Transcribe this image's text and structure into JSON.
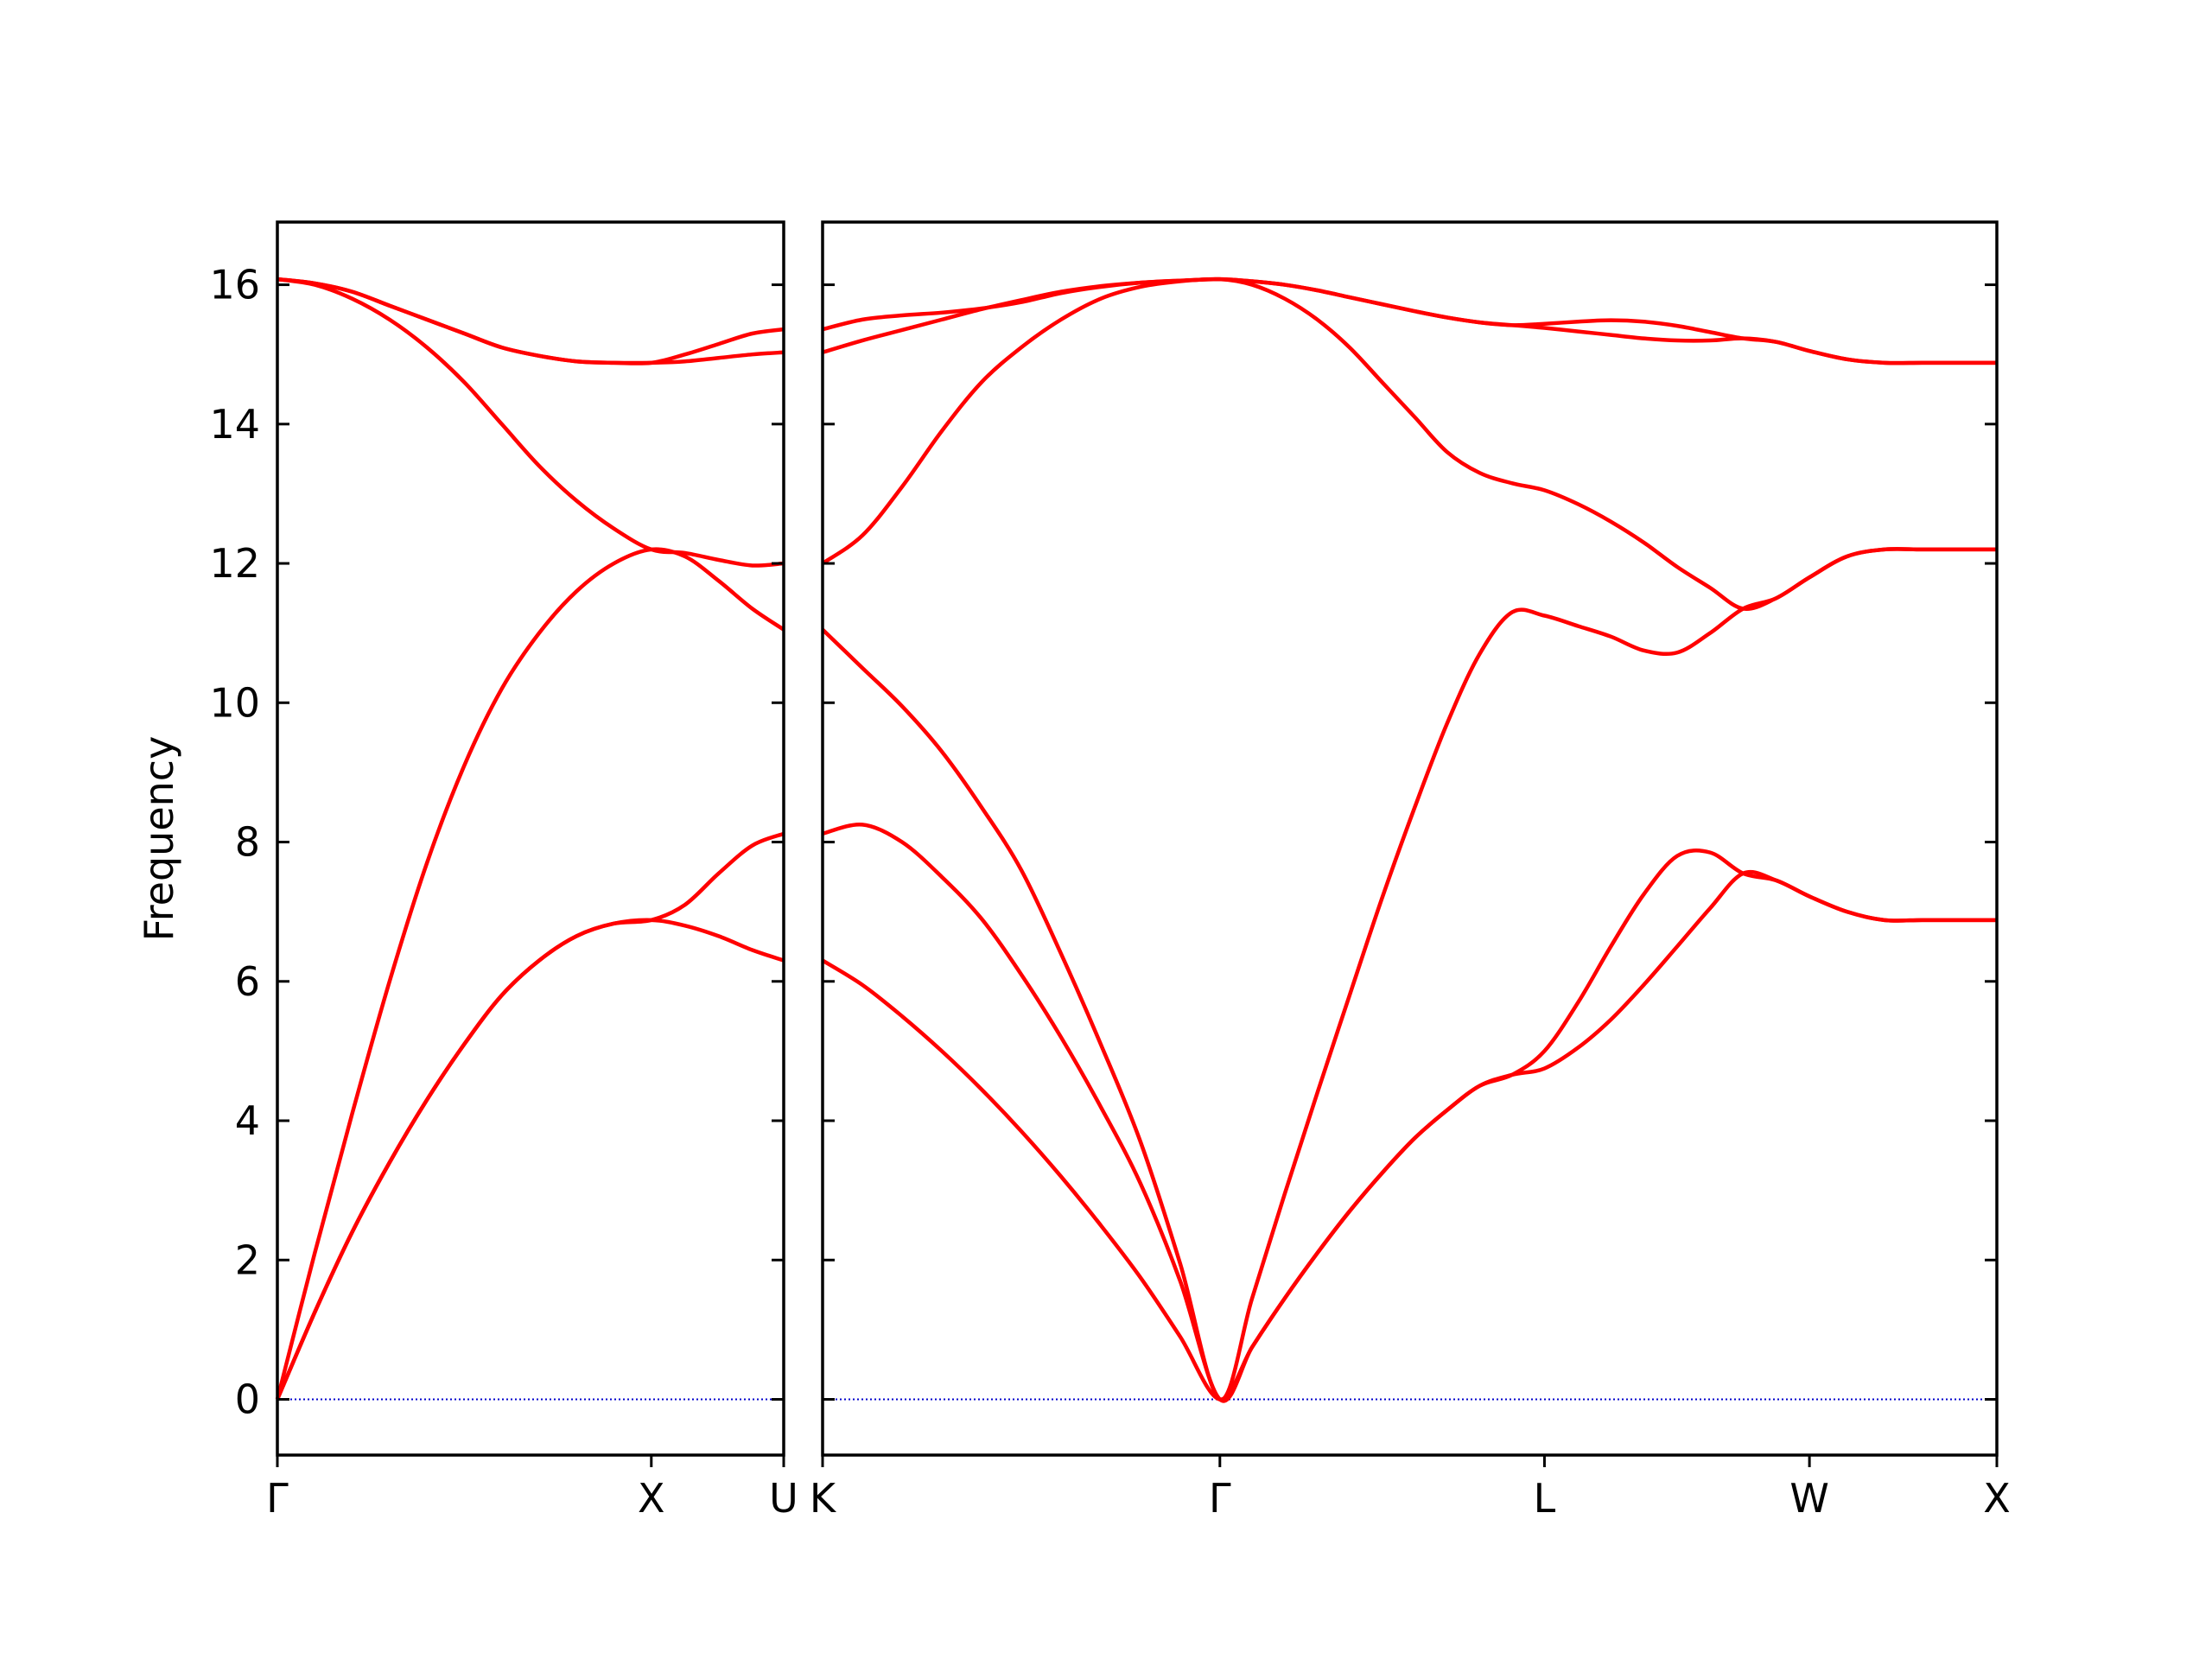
{
  "chart_data": [
    {
      "type": "line",
      "ylabel": "Frequency",
      "xlim": [
        0,
        1.354
      ],
      "ylim": [
        -0.8,
        16.9
      ],
      "xticks": [
        {
          "value": 0,
          "label": "Γ"
        },
        {
          "value": 1,
          "label": "X"
        },
        {
          "value": 1.354,
          "label": "U"
        }
      ],
      "yticks": [
        0,
        2,
        4,
        6,
        8,
        10,
        12,
        14,
        16
      ],
      "show_ytick_labels": true,
      "zero_line": true,
      "zero_line_color": "#0000cc",
      "x": [
        0,
        0.1,
        0.2,
        0.3,
        0.4,
        0.5,
        0.6,
        0.7,
        0.8,
        0.9,
        1.0,
        1.09,
        1.18,
        1.27,
        1.354
      ],
      "series": [
        {
          "color": "#ff0000",
          "values": [
            0,
            1.25,
            2.4,
            3.4,
            4.3,
            5.1,
            5.8,
            6.3,
            6.65,
            6.83,
            6.88,
            6.8,
            6.65,
            6.45,
            6.3
          ]
        },
        {
          "color": "#ff0000",
          "values": [
            0,
            1.25,
            2.4,
            3.4,
            4.3,
            5.1,
            5.8,
            6.3,
            6.65,
            6.83,
            6.88,
            7.1,
            7.55,
            7.95,
            8.12
          ]
        },
        {
          "color": "#ff0000",
          "values": [
            0,
            2.1,
            4.1,
            6.0,
            7.7,
            9.1,
            10.2,
            11.0,
            11.6,
            12.0,
            12.2,
            12.1,
            11.75,
            11.35,
            11.05
          ]
        },
        {
          "color": "#ff0000",
          "values": [
            16.08,
            16.0,
            15.8,
            15.5,
            15.1,
            14.6,
            14.0,
            13.4,
            12.9,
            12.5,
            12.2,
            12.15,
            12.05,
            11.97,
            12.0
          ]
        },
        {
          "color": "#ff0000",
          "values": [
            16.08,
            16.02,
            15.9,
            15.7,
            15.5,
            15.3,
            15.1,
            14.98,
            14.9,
            14.88,
            14.88,
            14.9,
            14.95,
            15.0,
            15.03
          ]
        },
        {
          "color": "#ff0000",
          "values": [
            16.08,
            16.02,
            15.9,
            15.7,
            15.5,
            15.3,
            15.1,
            14.98,
            14.9,
            14.88,
            14.88,
            15.0,
            15.15,
            15.3,
            15.36
          ]
        }
      ]
    },
    {
      "type": "line",
      "xlim": [
        1.354,
        4.487
      ],
      "ylim": [
        -0.8,
        16.9
      ],
      "xticks": [
        {
          "value": 1.354,
          "label": "K"
        },
        {
          "value": 2.414,
          "label": "Γ"
        },
        {
          "value": 3.28,
          "label": "L"
        },
        {
          "value": 3.987,
          "label": "W"
        },
        {
          "value": 4.487,
          "label": "X"
        }
      ],
      "yticks": [
        0,
        2,
        4,
        6,
        8,
        10,
        12,
        14,
        16
      ],
      "show_ytick_labels": false,
      "zero_line": true,
      "zero_line_color": "#0000cc",
      "x": [
        1.354,
        1.46,
        1.566,
        1.672,
        1.778,
        1.884,
        1.99,
        2.096,
        2.202,
        2.308,
        2.414,
        2.5,
        2.587,
        2.674,
        2.76,
        2.847,
        2.934,
        3.02,
        3.107,
        3.194,
        3.28,
        3.37,
        3.457,
        3.545,
        3.634,
        3.722,
        3.81,
        3.898,
        3.987,
        4.087,
        4.187,
        4.287,
        4.387,
        4.487
      ],
      "series": [
        {
          "color": "#ff0000",
          "values": [
            6.3,
            5.95,
            5.5,
            5.0,
            4.45,
            3.85,
            3.2,
            2.5,
            1.75,
            0.9,
            0,
            0.75,
            1.45,
            2.1,
            2.7,
            3.25,
            3.75,
            4.15,
            4.5,
            4.66,
            4.75,
            5.05,
            5.45,
            5.95,
            6.5,
            7.05,
            7.55,
            7.45,
            7.22,
            7.0,
            6.88,
            6.88,
            6.88,
            6.88
          ]
        },
        {
          "color": "#ff0000",
          "values": [
            8.12,
            8.25,
            8.0,
            7.5,
            6.9,
            6.1,
            5.2,
            4.2,
            3.1,
            1.7,
            0,
            0.75,
            1.45,
            2.1,
            2.7,
            3.25,
            3.75,
            4.15,
            4.5,
            4.66,
            5.0,
            5.7,
            6.5,
            7.25,
            7.8,
            7.85,
            7.55,
            7.45,
            7.22,
            7.0,
            6.88,
            6.88,
            6.88,
            6.88
          ]
        },
        {
          "color": "#ff0000",
          "values": [
            11.05,
            10.5,
            9.95,
            9.3,
            8.5,
            7.6,
            6.4,
            5.1,
            3.7,
            1.95,
            0,
            1.45,
            2.95,
            4.4,
            5.8,
            7.2,
            8.5,
            9.7,
            10.7,
            11.3,
            11.25,
            11.1,
            10.95,
            10.75,
            10.72,
            11.0,
            11.35,
            11.5,
            11.8,
            12.1,
            12.2,
            12.2,
            12.2,
            12.2
          ]
        },
        {
          "color": "#ff0000",
          "values": [
            12.0,
            12.4,
            13.1,
            13.9,
            14.6,
            15.1,
            15.5,
            15.8,
            15.97,
            16.05,
            16.08,
            16.0,
            15.8,
            15.5,
            15.1,
            14.6,
            14.1,
            13.6,
            13.3,
            13.15,
            13.05,
            12.85,
            12.6,
            12.3,
            11.95,
            11.65,
            11.35,
            11.5,
            11.8,
            12.1,
            12.2,
            12.2,
            12.2,
            12.2
          ]
        },
        {
          "color": "#ff0000",
          "values": [
            15.03,
            15.2,
            15.35,
            15.5,
            15.65,
            15.78,
            15.9,
            15.98,
            16.03,
            16.06,
            16.08,
            16.05,
            16.0,
            15.92,
            15.82,
            15.72,
            15.62,
            15.53,
            15.46,
            15.42,
            15.38,
            15.33,
            15.28,
            15.23,
            15.2,
            15.2,
            15.23,
            15.18,
            15.05,
            14.93,
            14.88,
            14.88,
            14.88,
            14.88
          ]
        },
        {
          "color": "#ff0000",
          "values": [
            15.36,
            15.5,
            15.56,
            15.6,
            15.66,
            15.75,
            15.88,
            15.97,
            16.03,
            16.06,
            16.08,
            16.05,
            16.0,
            15.92,
            15.82,
            15.72,
            15.62,
            15.53,
            15.46,
            15.42,
            15.44,
            15.47,
            15.49,
            15.47,
            15.41,
            15.32,
            15.23,
            15.18,
            15.05,
            14.93,
            14.88,
            14.88,
            14.88,
            14.88
          ]
        }
      ]
    }
  ]
}
